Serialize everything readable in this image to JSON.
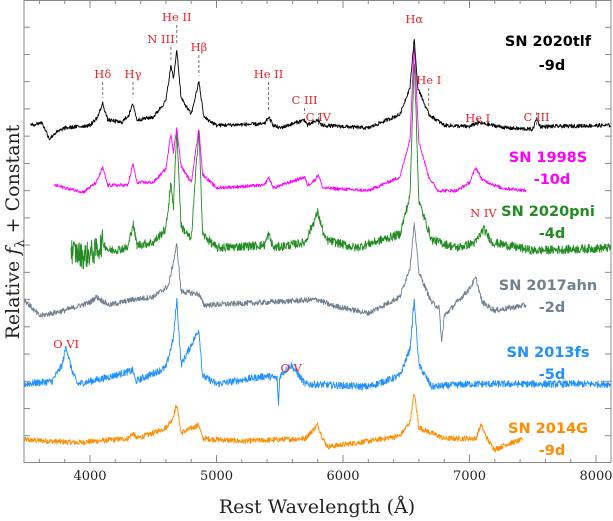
{
  "chart_data": {
    "type": "line",
    "xlabel": "Rest Wavelength (Å)",
    "ylabel": "Relative f_λ + Constant",
    "ylabel_parts": {
      "pre": "Relative ",
      "f": "f",
      "sub": "λ",
      "post": " + Constant"
    },
    "xlim": [
      3480,
      8120
    ],
    "ylim": [
      0,
      17
    ],
    "x_ticks": [
      4000,
      5000,
      6000,
      7000,
      8000
    ],
    "x_tick_labels": [
      "4000",
      "5000",
      "6000",
      "7000",
      "8000"
    ],
    "y_tick_labels_shown": false,
    "grid": false,
    "series": [
      {
        "name": "SN 2020tlf",
        "phase": "-9d",
        "color": "#000000",
        "points": [
          [
            3530,
            12.4
          ],
          [
            3620,
            12.5
          ],
          [
            3680,
            11.9
          ],
          [
            3720,
            12.1
          ],
          [
            3800,
            12.3
          ],
          [
            4000,
            12.4
          ],
          [
            4060,
            12.7
          ],
          [
            4100,
            13.2
          ],
          [
            4140,
            12.6
          ],
          [
            4250,
            12.5
          ],
          [
            4310,
            12.8
          ],
          [
            4340,
            13.2
          ],
          [
            4370,
            12.6
          ],
          [
            4500,
            12.7
          ],
          [
            4600,
            13.3
          ],
          [
            4640,
            14.6
          ],
          [
            4660,
            14.1
          ],
          [
            4686,
            15.2
          ],
          [
            4720,
            13.4
          ],
          [
            4800,
            12.8
          ],
          [
            4861,
            14.0
          ],
          [
            4900,
            12.7
          ],
          [
            5000,
            12.4
          ],
          [
            5380,
            12.45
          ],
          [
            5411,
            12.7
          ],
          [
            5450,
            12.4
          ],
          [
            5500,
            12.3
          ],
          [
            5696,
            12.6
          ],
          [
            5720,
            12.4
          ],
          [
            5805,
            12.6
          ],
          [
            5830,
            12.4
          ],
          [
            6200,
            12.3
          ],
          [
            6450,
            12.8
          ],
          [
            6530,
            13.8
          ],
          [
            6563,
            15.6
          ],
          [
            6590,
            13.8
          ],
          [
            6678,
            12.8
          ],
          [
            6800,
            12.4
          ],
          [
            7000,
            12.35
          ],
          [
            7065,
            12.5
          ],
          [
            7300,
            12.3
          ],
          [
            7500,
            12.25
          ],
          [
            7530,
            12.65
          ],
          [
            7560,
            12.35
          ],
          [
            8118,
            12.4
          ]
        ]
      },
      {
        "name": "SN 1998S",
        "phase": "-10d",
        "color": "#ff00ff",
        "points": [
          [
            3720,
            10.2
          ],
          [
            3850,
            10.05
          ],
          [
            3950,
            9.95
          ],
          [
            4050,
            10.3
          ],
          [
            4100,
            10.85
          ],
          [
            4140,
            10.2
          ],
          [
            4300,
            10.2
          ],
          [
            4340,
            11.0
          ],
          [
            4370,
            10.3
          ],
          [
            4500,
            10.3
          ],
          [
            4600,
            10.8
          ],
          [
            4640,
            12.1
          ],
          [
            4660,
            11.4
          ],
          [
            4686,
            12.3
          ],
          [
            4720,
            10.9
          ],
          [
            4800,
            10.3
          ],
          [
            4861,
            12.3
          ],
          [
            4890,
            10.6
          ],
          [
            5000,
            10.1
          ],
          [
            5380,
            10.2
          ],
          [
            5411,
            10.5
          ],
          [
            5450,
            10.1
          ],
          [
            5696,
            10.5
          ],
          [
            5720,
            10.2
          ],
          [
            5780,
            10.4
          ],
          [
            5805,
            10.6
          ],
          [
            5840,
            10.1
          ],
          [
            6200,
            10.0
          ],
          [
            6450,
            10.5
          ],
          [
            6530,
            11.9
          ],
          [
            6563,
            15.4
          ],
          [
            6600,
            11.8
          ],
          [
            6678,
            10.5
          ],
          [
            6750,
            10.0
          ],
          [
            6900,
            10.0
          ],
          [
            7000,
            10.3
          ],
          [
            7050,
            10.85
          ],
          [
            7100,
            10.4
          ],
          [
            7250,
            10.1
          ],
          [
            7450,
            10.0
          ]
        ]
      },
      {
        "name": "SN 2020pni",
        "phase": "-4d",
        "color": "#228b22",
        "points": [
          [
            3850,
            7.8
          ],
          [
            3950,
            7.6
          ],
          [
            4050,
            7.8
          ],
          [
            4100,
            8.1
          ],
          [
            4150,
            7.8
          ],
          [
            4300,
            7.9
          ],
          [
            4340,
            8.8
          ],
          [
            4370,
            8.0
          ],
          [
            4500,
            8.1
          ],
          [
            4600,
            8.6
          ],
          [
            4640,
            10.3
          ],
          [
            4660,
            9.4
          ],
          [
            4686,
            12.3
          ],
          [
            4720,
            8.7
          ],
          [
            4800,
            8.2
          ],
          [
            4861,
            12.3
          ],
          [
            4890,
            8.4
          ],
          [
            5000,
            7.9
          ],
          [
            5380,
            8.0
          ],
          [
            5411,
            8.4
          ],
          [
            5450,
            7.9
          ],
          [
            5700,
            8.1
          ],
          [
            5800,
            9.2
          ],
          [
            5860,
            8.2
          ],
          [
            6100,
            7.9
          ],
          [
            6450,
            8.4
          ],
          [
            6530,
            9.8
          ],
          [
            6563,
            14.9
          ],
          [
            6600,
            9.6
          ],
          [
            6700,
            8.2
          ],
          [
            6900,
            7.9
          ],
          [
            7050,
            8.1
          ],
          [
            7110,
            8.6
          ],
          [
            7180,
            8.1
          ],
          [
            7500,
            7.8
          ],
          [
            8118,
            7.9
          ]
        ]
      },
      {
        "name": "SN 2017ahn",
        "phase": "-2d",
        "color": "#708090",
        "points": [
          [
            3480,
            6.0
          ],
          [
            3600,
            5.4
          ],
          [
            3800,
            5.6
          ],
          [
            4000,
            5.9
          ],
          [
            4050,
            6.1
          ],
          [
            4150,
            5.8
          ],
          [
            4340,
            6.0
          ],
          [
            4500,
            6.1
          ],
          [
            4620,
            6.5
          ],
          [
            4686,
            8.0
          ],
          [
            4720,
            6.3
          ],
          [
            4861,
            6.2
          ],
          [
            4900,
            5.8
          ],
          [
            5400,
            5.9
          ],
          [
            5800,
            6.0
          ],
          [
            5900,
            5.8
          ],
          [
            6200,
            5.5
          ],
          [
            6450,
            6.1
          ],
          [
            6530,
            7.2
          ],
          [
            6563,
            8.8
          ],
          [
            6600,
            7.0
          ],
          [
            6700,
            5.9
          ],
          [
            6760,
            5.7
          ],
          [
            6780,
            4.4
          ],
          [
            6800,
            5.4
          ],
          [
            6900,
            5.9
          ],
          [
            7000,
            6.4
          ],
          [
            7050,
            6.8
          ],
          [
            7100,
            5.9
          ],
          [
            7200,
            5.6
          ],
          [
            7450,
            5.8
          ]
        ]
      },
      {
        "name": "SN 2013fs",
        "phase": "-5d",
        "color": "#1e90ff",
        "points": [
          [
            3480,
            2.9
          ],
          [
            3700,
            3.0
          ],
          [
            3780,
            3.6
          ],
          [
            3811,
            4.3
          ],
          [
            3850,
            3.5
          ],
          [
            3900,
            2.9
          ],
          [
            4100,
            3.1
          ],
          [
            4340,
            3.4
          ],
          [
            4360,
            3.0
          ],
          [
            4600,
            3.5
          ],
          [
            4660,
            4.6
          ],
          [
            4686,
            6.0
          ],
          [
            4720,
            3.6
          ],
          [
            4861,
            4.9
          ],
          [
            4890,
            3.2
          ],
          [
            5000,
            2.9
          ],
          [
            5400,
            3.2
          ],
          [
            5480,
            3.1
          ],
          [
            5490,
            2.1
          ],
          [
            5500,
            3.2
          ],
          [
            5590,
            3.6
          ],
          [
            5700,
            2.9
          ],
          [
            6200,
            2.8
          ],
          [
            6450,
            3.2
          ],
          [
            6530,
            4.2
          ],
          [
            6563,
            6.0
          ],
          [
            6600,
            3.6
          ],
          [
            6700,
            2.8
          ],
          [
            7000,
            2.9
          ],
          [
            8118,
            2.9
          ]
        ]
      },
      {
        "name": "SN 2014G",
        "phase": "-9d",
        "color": "#ff8c00",
        "points": [
          [
            3480,
            0.85
          ],
          [
            3900,
            0.75
          ],
          [
            4300,
            0.9
          ],
          [
            4340,
            1.1
          ],
          [
            4370,
            0.9
          ],
          [
            4500,
            1.1
          ],
          [
            4600,
            1.3
          ],
          [
            4650,
            1.6
          ],
          [
            4686,
            2.15
          ],
          [
            4720,
            1.1
          ],
          [
            4861,
            1.4
          ],
          [
            4890,
            0.9
          ],
          [
            5200,
            0.8
          ],
          [
            5700,
            0.9
          ],
          [
            5800,
            1.4
          ],
          [
            5840,
            0.9
          ],
          [
            5880,
            0.6
          ],
          [
            6200,
            0.8
          ],
          [
            6450,
            1.0
          ],
          [
            6530,
            1.5
          ],
          [
            6563,
            2.6
          ],
          [
            6600,
            1.3
          ],
          [
            6800,
            0.9
          ],
          [
            7050,
            0.9
          ],
          [
            7090,
            1.4
          ],
          [
            7150,
            0.8
          ],
          [
            7200,
            0.5
          ],
          [
            7300,
            0.7
          ],
          [
            7420,
            0.85
          ]
        ]
      }
    ],
    "annotations": [
      {
        "text": "Hδ",
        "wavelength": 4101,
        "series": "SN 2020tlf"
      },
      {
        "text": "Hγ",
        "wavelength": 4340,
        "series": "SN 2020tlf"
      },
      {
        "text": "N III",
        "wavelength": 4640,
        "series": "SN 2020tlf"
      },
      {
        "text": "He II",
        "wavelength": 4686,
        "series": "SN 2020tlf"
      },
      {
        "text": "Hβ",
        "wavelength": 4861,
        "series": "SN 2020tlf"
      },
      {
        "text": "He II",
        "wavelength": 5411,
        "series": "SN 2020tlf"
      },
      {
        "text": "C III",
        "wavelength": 5696,
        "series": "SN 2020tlf"
      },
      {
        "text": "C IV",
        "wavelength": 5805,
        "series": "SN 2020tlf"
      },
      {
        "text": "Hα",
        "wavelength": 6563,
        "series": "SN 2020tlf"
      },
      {
        "text": "He I",
        "wavelength": 6678,
        "series": "SN 2020tlf"
      },
      {
        "text": "He I",
        "wavelength": 7065,
        "series": "SN 2020tlf"
      },
      {
        "text": "C III",
        "wavelength": 7530,
        "series": "SN 2020tlf"
      },
      {
        "text": "N IV",
        "wavelength": 7110,
        "series": "SN 2020pni"
      },
      {
        "text": "O VI",
        "wavelength": 3811,
        "series": "SN 2013fs"
      },
      {
        "text": "O V",
        "wavelength": 5590,
        "series": "SN 2013fs"
      }
    ],
    "annotation_color": "#e8232a"
  }
}
